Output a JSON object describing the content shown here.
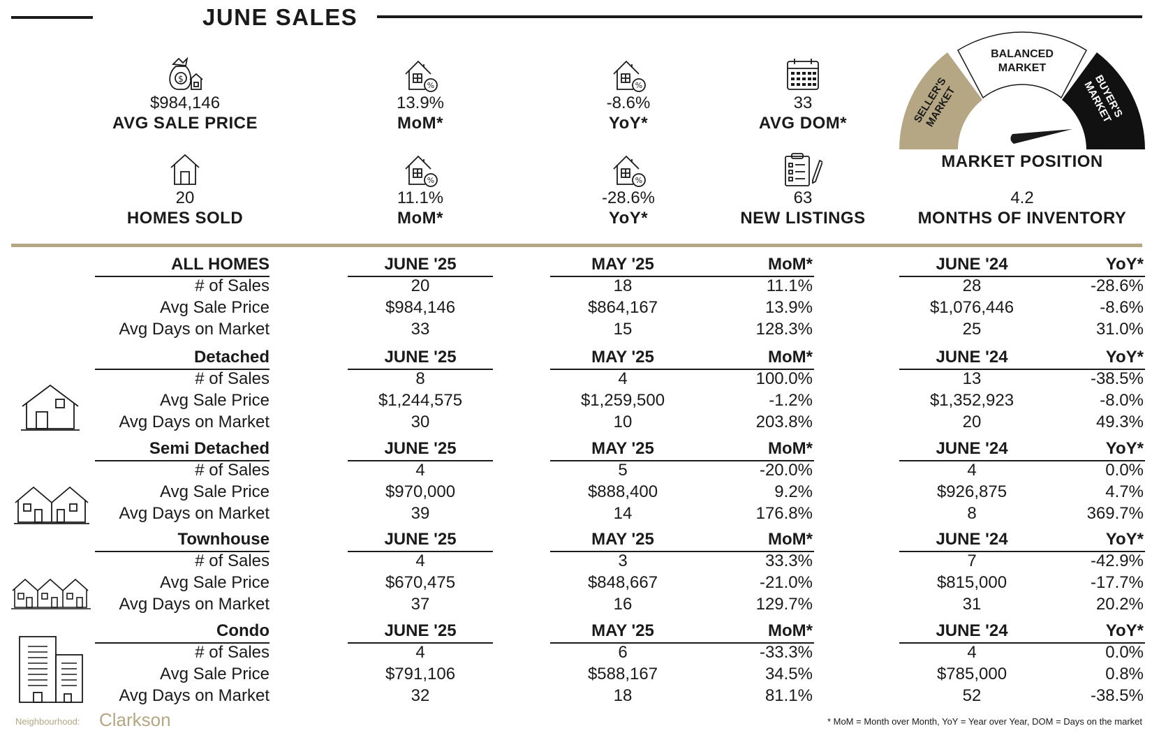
{
  "header": {
    "title": "JUNE SALES"
  },
  "kpis_top": [
    {
      "icon": "money-bag-house-icon",
      "value": "$984,146",
      "label": "AVG SALE PRICE"
    },
    {
      "icon": "house-percent-icon",
      "value": "13.9%",
      "label": "MoM*"
    },
    {
      "icon": "house-percent-icon",
      "value": "-8.6%",
      "label": "YoY*"
    },
    {
      "icon": "calendar-icon",
      "value": "33",
      "label": "AVG DOM*"
    }
  ],
  "kpis_bottom": [
    {
      "icon": "house-icon",
      "value": "20",
      "label": "HOMES SOLD"
    },
    {
      "icon": "house-percent-icon",
      "value": "11.1%",
      "label": "MoM*"
    },
    {
      "icon": "house-percent-icon",
      "value": "-28.6%",
      "label": "YoY*"
    },
    {
      "icon": "clipboard-pen-icon",
      "value": "63",
      "label": "NEW LISTINGS"
    },
    {
      "icon": "",
      "value": "4.2",
      "label": "MONTHS OF INVENTORY"
    }
  ],
  "gauge": {
    "title": "MARKET POSITION",
    "seller": [
      "SELLER'S",
      "MARKET"
    ],
    "balanced": [
      "BALANCED",
      "MARKET"
    ],
    "buyer": [
      "BUYER'S",
      "MARKET"
    ],
    "position": "buyers",
    "colors": {
      "seller": "#b5a784",
      "balanced": "#ffffff",
      "buyer": "#111111"
    }
  },
  "table": {
    "columns": [
      "JUNE '25",
      "MAY '25",
      "MoM*",
      "JUNE '24",
      "YoY*"
    ],
    "sections": [
      {
        "name": "ALL HOMES",
        "icon": "",
        "rows": [
          [
            "# of Sales",
            "20",
            "18",
            "11.1%",
            "28",
            "-28.6%"
          ],
          [
            "Avg Sale Price",
            "$984,146",
            "$864,167",
            "13.9%",
            "$1,076,446",
            "-8.6%"
          ],
          [
            "Avg Days on Market",
            "33",
            "15",
            "128.3%",
            "25",
            "31.0%"
          ]
        ]
      },
      {
        "name": "Detached",
        "icon": "detached-house-icon",
        "rows": [
          [
            "# of Sales",
            "8",
            "4",
            "100.0%",
            "13",
            "-38.5%"
          ],
          [
            "Avg Sale Price",
            "$1,244,575",
            "$1,259,500",
            "-1.2%",
            "$1,352,923",
            "-8.0%"
          ],
          [
            "Avg Days on Market",
            "30",
            "10",
            "203.8%",
            "20",
            "49.3%"
          ]
        ]
      },
      {
        "name": "Semi Detached",
        "icon": "semi-detached-house-icon",
        "rows": [
          [
            "# of Sales",
            "4",
            "5",
            "-20.0%",
            "4",
            "0.0%"
          ],
          [
            "Avg Sale Price",
            "$970,000",
            "$888,400",
            "9.2%",
            "$926,875",
            "4.7%"
          ],
          [
            "Avg Days on Market",
            "39",
            "14",
            "176.8%",
            "8",
            "369.7%"
          ]
        ]
      },
      {
        "name": "Townhouse",
        "icon": "townhouse-icon",
        "rows": [
          [
            "# of Sales",
            "4",
            "3",
            "33.3%",
            "7",
            "-42.9%"
          ],
          [
            "Avg Sale Price",
            "$670,475",
            "$848,667",
            "-21.0%",
            "$815,000",
            "-17.7%"
          ],
          [
            "Avg Days on Market",
            "37",
            "16",
            "129.7%",
            "31",
            "20.2%"
          ]
        ]
      },
      {
        "name": "Condo",
        "icon": "condo-building-icon",
        "rows": [
          [
            "# of Sales",
            "4",
            "6",
            "-33.3%",
            "4",
            "0.0%"
          ],
          [
            "Avg Sale Price",
            "$791,106",
            "$588,167",
            "34.5%",
            "$785,000",
            "0.8%"
          ],
          [
            "Avg Days on Market",
            "32",
            "18",
            "81.1%",
            "52",
            "-38.5%"
          ]
        ]
      }
    ]
  },
  "footer": {
    "neighbourhood_label": "Neighbourhood:",
    "neighbourhood_name": "Clarkson",
    "footnote": "* MoM = Month over Month, YoY = Year over Year, DOM = Days on the market"
  }
}
